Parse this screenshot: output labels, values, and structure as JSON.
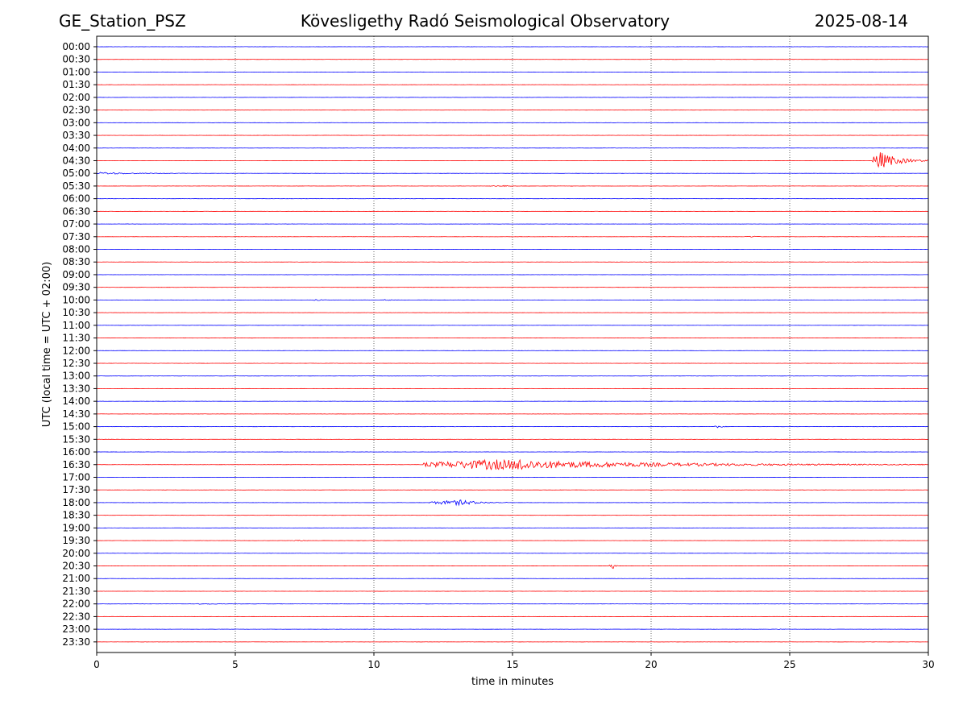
{
  "header": {
    "station": "GE_Station_PSZ",
    "observatory": "Kövesligethy Radó Seismological Observatory",
    "date": "2025-08-14"
  },
  "chart_data": {
    "type": "line",
    "title": "Kövesligethy Radó Seismological Observatory",
    "xlabel": "time in minutes",
    "ylabel": "UTC (local time = UTC + 02:00)",
    "xlim": [
      0,
      30
    ],
    "x_ticks": [
      0,
      5,
      10,
      15,
      20,
      25,
      30
    ],
    "grid": "vertical dotted at x ticks",
    "row_labels": [
      "00:00",
      "00:30",
      "01:00",
      "01:30",
      "02:00",
      "02:30",
      "03:00",
      "03:30",
      "04:00",
      "04:30",
      "05:00",
      "05:30",
      "06:00",
      "06:30",
      "07:00",
      "07:30",
      "08:00",
      "08:30",
      "09:00",
      "09:30",
      "10:00",
      "10:30",
      "11:00",
      "11:30",
      "12:00",
      "12:30",
      "13:00",
      "13:30",
      "14:00",
      "14:30",
      "15:00",
      "15:30",
      "16:00",
      "16:30",
      "17:00",
      "17:30",
      "18:00",
      "18:30",
      "19:00",
      "19:30",
      "20:00",
      "20:30",
      "21:00",
      "21:30",
      "22:00",
      "22:30",
      "23:00",
      "23:30"
    ],
    "row_colors": [
      "#0000ff",
      "#ff0000"
    ],
    "events": [
      {
        "row": "04:30",
        "start_min": 28.0,
        "end_min": 30.0,
        "peak_min": 28.2,
        "amplitude": 3.0
      },
      {
        "row": "05:00",
        "start_min": 0.0,
        "end_min": 3.5,
        "peak_min": 0.1,
        "amplitude": 0.35
      },
      {
        "row": "05:30",
        "start_min": 14.2,
        "end_min": 15.2,
        "peak_min": 14.8,
        "amplitude": 0.15
      },
      {
        "row": "07:30",
        "start_min": 23.4,
        "end_min": 24.2,
        "peak_min": 23.7,
        "amplitude": 0.2
      },
      {
        "row": "10:00",
        "start_min": 7.8,
        "end_min": 8.4,
        "peak_min": 8.0,
        "amplitude": 0.2
      },
      {
        "row": "10:00",
        "start_min": 10.3,
        "end_min": 10.9,
        "peak_min": 10.5,
        "amplitude": 0.2
      },
      {
        "row": "15:00",
        "start_min": 22.3,
        "end_min": 22.8,
        "peak_min": 22.45,
        "amplitude": 0.45
      },
      {
        "row": "16:30",
        "start_min": 11.8,
        "end_min": 30.0,
        "peak_min": 14.35,
        "amplitude": 1.6
      },
      {
        "row": "18:00",
        "start_min": 12.0,
        "end_min": 14.8,
        "peak_min": 13.2,
        "amplitude": 0.8
      },
      {
        "row": "19:30",
        "start_min": 7.1,
        "end_min": 8.0,
        "peak_min": 7.3,
        "amplitude": 0.15
      },
      {
        "row": "20:30",
        "start_min": 18.5,
        "end_min": 18.8,
        "peak_min": 18.63,
        "amplitude": 0.9
      },
      {
        "row": "22:00",
        "start_min": 3.6,
        "end_min": 5.2,
        "peak_min": 3.9,
        "amplitude": 0.15
      },
      {
        "row": "23:00",
        "start_min": 24.5,
        "end_min": 25.0,
        "peak_min": 24.75,
        "amplitude": 0.1
      }
    ],
    "secondary_peaks": [
      {
        "row": "16:30",
        "peak_min": 15.35,
        "amplitude": 1.4
      }
    ]
  }
}
